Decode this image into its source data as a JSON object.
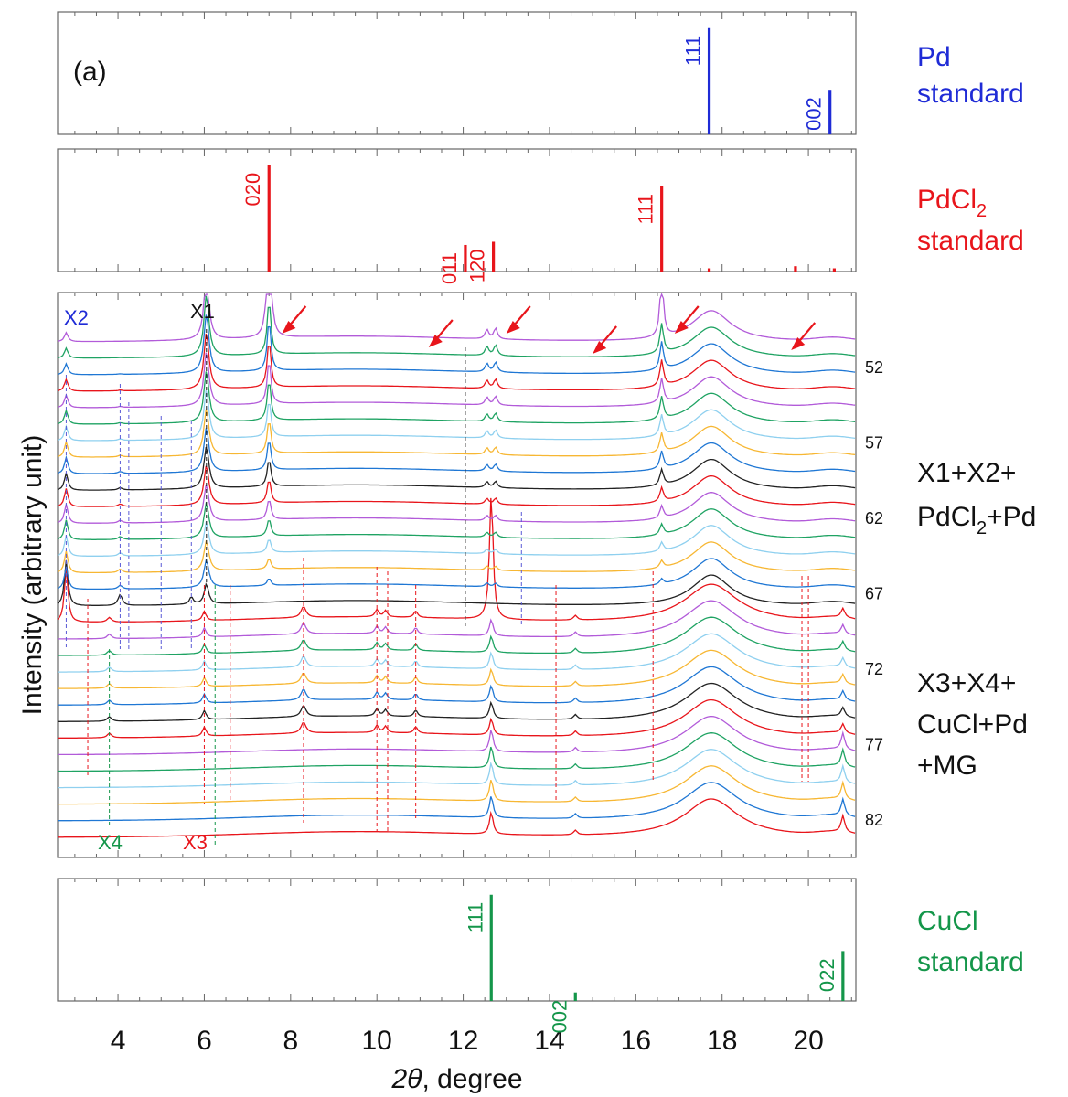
{
  "chart_data": [
    {
      "type": "bar",
      "panel": "Pd standard",
      "color": "#1f2bd6",
      "panel_label": "(a)",
      "legend": [
        "Pd",
        "standard"
      ],
      "x": [
        17.7,
        20.5
      ],
      "values": [
        100,
        42
      ],
      "labels": [
        "111",
        "002"
      ],
      "xlim": [
        2.6,
        21.1
      ],
      "ylim": [
        0,
        105
      ]
    },
    {
      "type": "bar",
      "panel": "PdCl2 standard",
      "color": "#e8151b",
      "legend": [
        "PdCl",
        "2",
        "standard"
      ],
      "x": [
        7.5,
        12.05,
        12.7,
        16.6,
        17.7,
        19.7,
        20.6
      ],
      "values": [
        100,
        25,
        28,
        80,
        3,
        5,
        3
      ],
      "labels": [
        "020",
        "011",
        "120",
        "111",
        "",
        "",
        ""
      ],
      "xlim": [
        2.6,
        21.1
      ],
      "ylim": [
        0,
        105
      ]
    },
    {
      "type": "line",
      "panel": "in-situ XRD patterns",
      "ylabel": "Intensity (arbitrary unit)",
      "xlim": [
        2.6,
        21.1
      ],
      "yticks": [],
      "series_count": 31,
      "series_colors": [
        "#e8151b",
        "#1f77d4",
        "#f7b733",
        "#8fd0ef",
        "#1fa363",
        "#b25bd9",
        "#e8151b",
        "#222222",
        "#1f77d4",
        "#f7b733",
        "#8fd0ef",
        "#1fa363",
        "#b25bd9",
        "#e8151b",
        "#222222",
        "#1f77d4",
        "#f7b733",
        "#8fd0ef",
        "#1fa363",
        "#b25bd9",
        "#e8151b",
        "#222222",
        "#1f77d4",
        "#f7b733",
        "#8fd0ef",
        "#1fa363",
        "#b25bd9",
        "#e8151b",
        "#1f77d4",
        "#1fa363",
        "#b25bd9"
      ],
      "series_labels": [
        "82",
        "77",
        "72",
        "67",
        "62",
        "57",
        "52"
      ],
      "phase_labels": [
        {
          "text": "X2",
          "color": "#1f2bd6"
        },
        {
          "text": "X1",
          "color": "#111111"
        },
        {
          "text": "X4",
          "color": "#14964a"
        },
        {
          "text": "X3",
          "color": "#e8151b"
        }
      ],
      "region_labels": [
        [
          "X1+X2+",
          "PdCl",
          "2",
          "+Pd"
        ],
        [
          "X3+X4+",
          "CuCl+Pd",
          "+MG"
        ]
      ],
      "arrow_x": [
        7.8,
        11.2,
        13.0,
        15.0,
        16.9,
        19.6
      ]
    },
    {
      "type": "bar",
      "panel": "CuCl standard",
      "color": "#14964a",
      "legend": [
        "CuCl",
        "standard"
      ],
      "x": [
        12.65,
        14.6,
        20.8
      ],
      "values": [
        100,
        8,
        47
      ],
      "labels": [
        "111",
        "002",
        "022"
      ],
      "xlim": [
        2.6,
        21.1
      ],
      "ylim": [
        0,
        105
      ]
    }
  ],
  "x_axis": {
    "label_italic": "2θ",
    "label_rest": ", degree",
    "ticks": [
      4,
      6,
      8,
      10,
      12,
      14,
      16,
      18,
      20
    ]
  }
}
